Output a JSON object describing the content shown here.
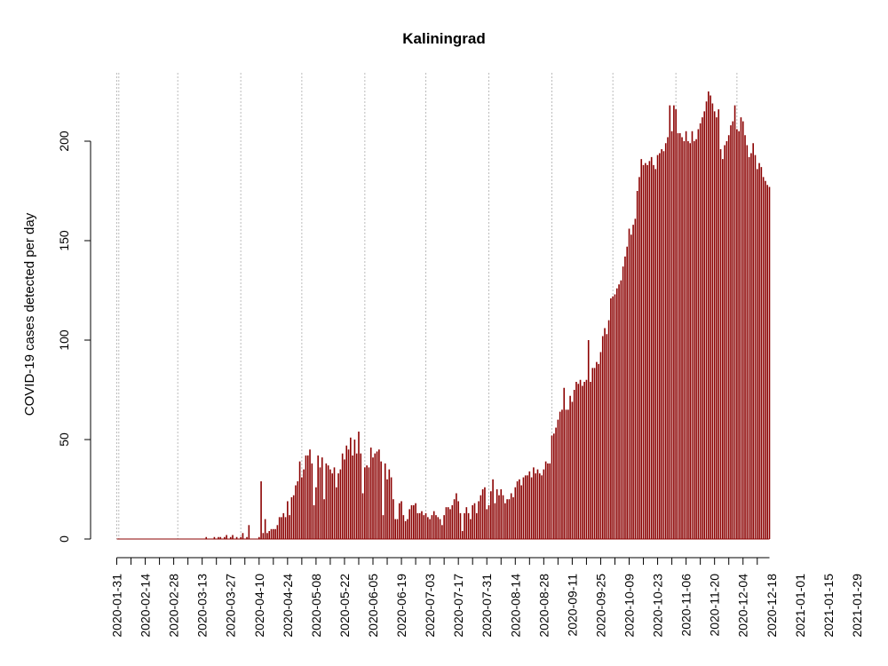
{
  "chart_data": {
    "type": "bar",
    "title": "Kaliningrad",
    "ylabel": "COVID-19 cases detected per day",
    "xlabel": "",
    "ylim": [
      0,
      220
    ],
    "y_ticks": [
      0,
      50,
      100,
      150,
      200
    ],
    "x_ticks": [
      "2020-01-31",
      "2020-02-14",
      "2020-02-28",
      "2020-03-13",
      "2020-03-27",
      "2020-04-10",
      "2020-04-24",
      "2020-05-08",
      "2020-05-22",
      "2020-06-05",
      "2020-06-19",
      "2020-07-03",
      "2020-07-17",
      "2020-07-31",
      "2020-08-14",
      "2020-08-28",
      "2020-09-11",
      "2020-09-25",
      "2020-10-09",
      "2020-10-23",
      "2020-11-06",
      "2020-11-20",
      "2020-12-04",
      "2020-12-18",
      "2021-01-01",
      "2021-01-15",
      "2021-01-29"
    ],
    "x_start": "2020-01-31",
    "x_end": "2021-02-04",
    "bar_color": "#8B0000",
    "grid": "vertical dotted lines at month starts",
    "values": [
      0,
      0,
      0,
      0,
      0,
      0,
      0,
      0,
      0,
      0,
      0,
      0,
      0,
      0,
      0,
      0,
      0,
      0,
      0,
      0,
      0,
      0,
      0,
      0,
      0,
      0,
      0,
      0,
      0,
      0,
      0,
      0,
      0,
      0,
      0,
      0,
      0,
      0,
      0,
      0,
      0,
      0,
      0,
      0,
      1,
      0,
      0,
      0,
      1,
      0,
      1,
      1,
      0,
      1,
      2,
      0,
      1,
      2,
      0,
      1,
      0,
      1,
      3,
      0,
      1,
      7,
      0,
      0,
      0,
      0,
      1,
      29,
      3,
      10,
      3,
      4,
      5,
      5,
      5,
      7,
      11,
      11,
      13,
      11,
      19,
      12,
      21,
      22,
      27,
      29,
      39,
      31,
      35,
      42,
      42,
      45,
      38,
      17,
      26,
      42,
      36,
      41,
      20,
      38,
      37,
      35,
      33,
      36,
      26,
      33,
      35,
      43,
      40,
      47,
      45,
      51,
      42,
      50,
      43,
      54,
      43,
      23,
      36,
      37,
      36,
      46,
      41,
      43,
      44,
      45,
      39,
      12,
      38,
      30,
      35,
      31,
      20,
      10,
      10,
      18,
      19,
      12,
      9,
      10,
      15,
      17,
      17,
      18,
      13,
      13,
      14,
      12,
      13,
      11,
      10,
      12,
      14,
      12,
      11,
      10,
      7,
      12,
      16,
      16,
      15,
      17,
      20,
      23,
      19,
      13,
      4,
      13,
      16,
      13,
      10,
      17,
      18,
      13,
      19,
      22,
      25,
      26,
      15,
      17,
      24,
      30,
      18,
      25,
      22,
      25,
      22,
      18,
      20,
      20,
      23,
      21,
      26,
      29,
      30,
      27,
      31,
      32,
      32,
      34,
      31,
      36,
      33,
      35,
      33,
      32,
      35,
      39,
      38,
      38,
      52,
      53,
      56,
      60,
      64,
      65,
      76,
      65,
      65,
      72,
      69,
      75,
      79,
      78,
      80,
      77,
      79,
      80,
      100,
      79,
      86,
      86,
      89,
      88,
      94,
      102,
      106,
      103,
      110,
      121,
      122,
      123,
      126,
      128,
      130,
      137,
      142,
      147,
      156,
      153,
      158,
      161,
      175,
      182,
      191,
      188,
      189,
      188,
      190,
      192,
      188,
      186,
      193,
      194,
      196,
      195,
      199,
      202,
      218,
      205,
      218,
      216,
      204,
      204,
      202,
      200,
      205,
      200,
      199,
      205,
      200,
      201,
      206,
      209,
      212,
      215,
      220,
      225,
      223,
      219,
      215,
      212,
      216,
      196,
      191,
      198,
      200,
      203,
      208,
      210,
      218,
      206,
      205,
      212,
      210,
      203,
      198,
      192,
      194,
      199,
      193,
      186,
      189,
      187,
      182,
      180,
      178,
      177
    ]
  }
}
